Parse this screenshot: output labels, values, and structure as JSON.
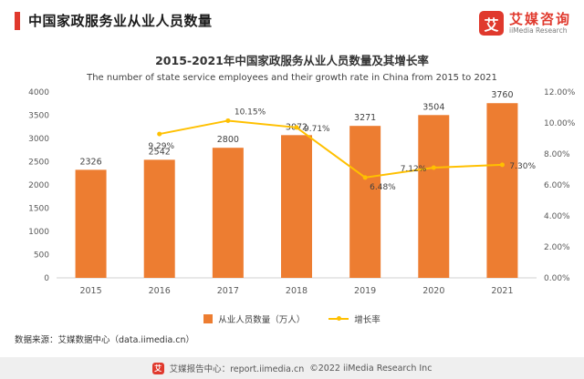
{
  "header": {
    "title": "中国家政服务业从业人员数量"
  },
  "logo": {
    "glyph": "艾",
    "brand_cn": "艾媒咨询",
    "brand_en": "iiMedia Research"
  },
  "chart": {
    "title_cn": "2015-2021年中国家政服务从业人员数量及其增长率",
    "title_en": "The number of state service employees and their growth rate in China from 2015 to 2021"
  },
  "chart_data": {
    "type": "bar",
    "subtype": "bar+line combo, dual axis",
    "title": "2015-2021年中国家政服务从业人员数量及其增长率",
    "categories": [
      "2015",
      "2016",
      "2017",
      "2018",
      "2019",
      "2020",
      "2021"
    ],
    "series": [
      {
        "name": "从业人员数量（万人）",
        "type": "bar",
        "axis": "left",
        "color": "#ed7d31",
        "values": [
          2326,
          2542,
          2800,
          3072,
          3271,
          3504,
          3760
        ]
      },
      {
        "name": "增长率",
        "type": "line",
        "axis": "right",
        "color": "#ffc000",
        "values": [
          null,
          9.29,
          10.15,
          9.71,
          6.48,
          7.12,
          7.3
        ],
        "labels": [
          "",
          "9.29%",
          "10.15%",
          "9.71%",
          "6.48%",
          "7.12%",
          "7.30%"
        ]
      }
    ],
    "left_axis": {
      "min": 0,
      "max": 4000,
      "step": 500
    },
    "right_axis": {
      "min": 0,
      "max": 12,
      "step": 2,
      "format": "percent2"
    },
    "grid": false,
    "legend_position": "bottom"
  },
  "source_note": "数据来源：艾媒数据中心（data.iimedia.cn）",
  "footer": {
    "left": "艾媒报告中心：report.iimedia.cn",
    "right": "©2022  iiMedia Research Inc"
  }
}
